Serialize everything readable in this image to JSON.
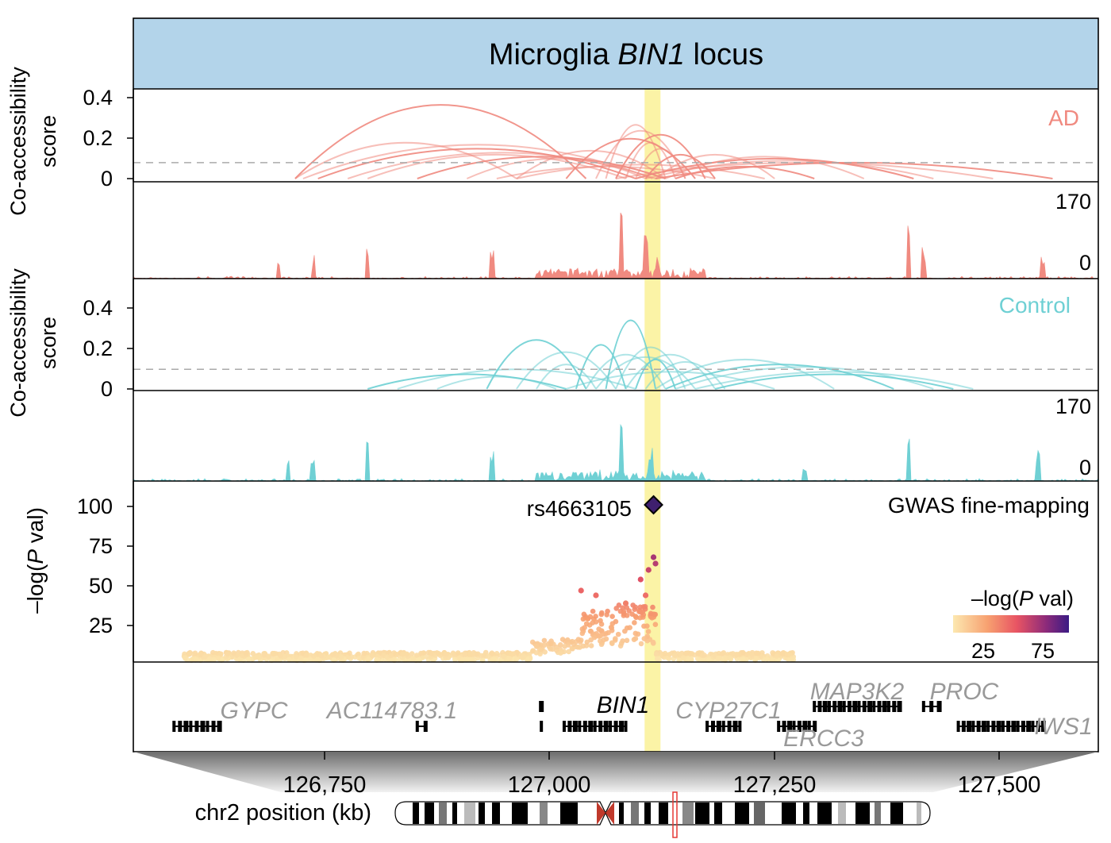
{
  "title": {
    "prefix": "Microglia ",
    "gene": "BIN1",
    "suffix": " locus"
  },
  "colors": {
    "header_bg": "#b3d4ea",
    "ad": "#f08a80",
    "control": "#6fd0d4",
    "highlight": "#fbf3a6",
    "gene_label": "#999999",
    "bin1_label": "#000000",
    "lead_snp": "#3f1f6e"
  },
  "shared": {
    "xlim_kb": [
      126614,
      127586
    ],
    "highlight_kb": 127137,
    "threshold": 0.08
  },
  "coaccess_ylabel": [
    "Co-accessibility",
    "score"
  ],
  "coaccess_ticks": [
    "0.4",
    "0.2",
    "0"
  ],
  "coaccess_tick_values": [
    0.4,
    0.2,
    0
  ],
  "coaccess_ylim": [
    0,
    0.45
  ],
  "ad": {
    "label": "AD",
    "arcs": [
      [
        126777,
        127070,
        0.37
      ],
      [
        126777,
        127000,
        0.18
      ],
      [
        126785,
        127137,
        0.17
      ],
      [
        126800,
        127120,
        0.15
      ],
      [
        126830,
        127140,
        0.13
      ],
      [
        126850,
        127110,
        0.12
      ],
      [
        126900,
        127150,
        0.11
      ],
      [
        126950,
        127130,
        0.1
      ],
      [
        127000,
        127150,
        0.14
      ],
      [
        127050,
        127180,
        0.2
      ],
      [
        127080,
        127170,
        0.24
      ],
      [
        127090,
        127150,
        0.27
      ],
      [
        127100,
        127190,
        0.22
      ],
      [
        127110,
        127160,
        0.18
      ],
      [
        127120,
        127170,
        0.15
      ],
      [
        127130,
        127200,
        0.12
      ],
      [
        127140,
        127260,
        0.12
      ],
      [
        127150,
        127350,
        0.11
      ],
      [
        127120,
        127400,
        0.1
      ],
      [
        127130,
        127420,
        0.09
      ],
      [
        127100,
        127480,
        0.08
      ],
      [
        127140,
        127540,
        0.08
      ],
      [
        127000,
        127250,
        0.07
      ],
      [
        126980,
        127200,
        0.06
      ],
      [
        127160,
        127300,
        0.06
      ]
    ],
    "track_max_label": "170",
    "track_min_label": "0"
  },
  "control": {
    "label": "Control",
    "arcs": [
      [
        126850,
        127050,
        0.06
      ],
      [
        126880,
        127120,
        0.08
      ],
      [
        126920,
        127040,
        0.05
      ],
      [
        126970,
        127070,
        0.2
      ],
      [
        127000,
        127100,
        0.15
      ],
      [
        127020,
        127080,
        0.1
      ],
      [
        127060,
        127110,
        0.18
      ],
      [
        127070,
        127150,
        0.14
      ],
      [
        127080,
        127180,
        0.13
      ],
      [
        127090,
        127140,
        0.28
      ],
      [
        127100,
        127170,
        0.17
      ],
      [
        127110,
        127200,
        0.14
      ],
      [
        127120,
        127160,
        0.12
      ],
      [
        127130,
        127210,
        0.11
      ],
      [
        127140,
        127320,
        0.12
      ],
      [
        127150,
        127380,
        0.1
      ],
      [
        127160,
        127420,
        0.09
      ],
      [
        127180,
        127460,
        0.07
      ],
      [
        127200,
        127440,
        0.06
      ],
      [
        127050,
        127260,
        0.07
      ]
    ],
    "track_max_label": "170",
    "track_min_label": "0"
  },
  "gwas": {
    "label": "GWAS fine-mapping",
    "ylabel_parts": [
      "–log(",
      "P",
      " val)"
    ],
    "ticks": [
      "100",
      "75",
      "50",
      "25"
    ],
    "tick_values": [
      100,
      75,
      50,
      25
    ],
    "ylim": [
      0,
      114
    ],
    "lead_snp": {
      "label": "rs4663105",
      "pos_kb": 127138,
      "value": 99
    },
    "top_points": [
      [
        127138,
        66
      ],
      [
        127140,
        62
      ],
      [
        127133,
        58
      ],
      [
        127125,
        52
      ],
      [
        127065,
        45
      ],
      [
        127080,
        42
      ],
      [
        127130,
        42
      ],
      [
        127110,
        37
      ]
    ],
    "legend": {
      "title_parts": [
        "–log(",
        "P",
        " val)"
      ],
      "tick_labels": [
        "25",
        "75"
      ],
      "tick_values": [
        25,
        75
      ],
      "range": [
        0,
        90
      ]
    }
  },
  "genes": [
    {
      "name": "GYPC",
      "italic": true,
      "bold_color": false,
      "start": 126655,
      "end": 126700,
      "row": 1
    },
    {
      "name": "AC114783.1",
      "italic": true,
      "bold_color": false,
      "start": 126900,
      "end": 126908,
      "row": 1
    },
    {
      "name": "BIN1",
      "italic": true,
      "bold_color": true,
      "start": 127048,
      "end": 127110,
      "row": 1
    },
    {
      "name": "CYP27C1",
      "italic": true,
      "bold_color": false,
      "start": 127192,
      "end": 127225,
      "row": 1
    },
    {
      "name": "ERCC3",
      "italic": true,
      "bold_color": false,
      "start": 127264,
      "end": 127300,
      "row": 1
    },
    {
      "name": "MAP3K2",
      "italic": true,
      "bold_color": false,
      "start": 127300,
      "end": 127385,
      "row": 0
    },
    {
      "name": "PROC",
      "italic": true,
      "bold_color": false,
      "start": 127410,
      "end": 127425,
      "row": 0
    },
    {
      "name": "IWS1",
      "italic": true,
      "bold_color": false,
      "start": 127445,
      "end": 127530,
      "row": 1
    }
  ],
  "x_axis": {
    "label": "chr2 position (kb)",
    "ticks": [
      "126,750",
      "127,000",
      "127,250",
      "127,500"
    ],
    "tick_values": [
      126750,
      127000,
      127250,
      127500
    ]
  }
}
